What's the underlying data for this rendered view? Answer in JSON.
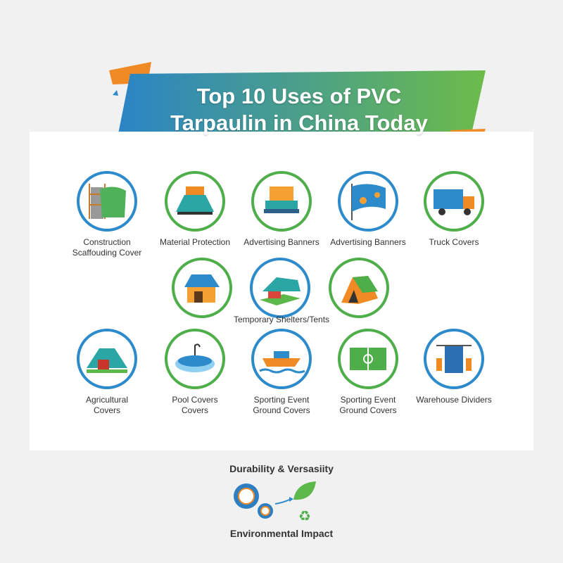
{
  "title": {
    "line1": "Top 10 Uses of PVC",
    "line2": "Tarpaulin in China Today"
  },
  "colors": {
    "blue": "#2d8acb",
    "green": "#4eae4a",
    "orange": "#f08a24"
  },
  "row1": [
    {
      "label": "Construction Scaffouding Cover",
      "icon": "scaffolding-icon",
      "ring": "blue"
    },
    {
      "label": "Material Protection",
      "icon": "covered-pallet-icon",
      "ring": "green"
    },
    {
      "label": "Advertising Banners",
      "icon": "stacked-boxes-icon",
      "ring": "green"
    },
    {
      "label": "Advertising Banners",
      "icon": "flag-banner-icon",
      "ring": "blue"
    },
    {
      "label": "Truck Covers",
      "icon": "truck-icon",
      "ring": "green"
    }
  ],
  "row2": {
    "label": "Temporary Shelters/Tents",
    "items": [
      {
        "icon": "barn-icon",
        "ring": "green"
      },
      {
        "icon": "canopy-shelter-icon",
        "ring": "blue"
      },
      {
        "icon": "tent-icon",
        "ring": "green"
      }
    ]
  },
  "row3": [
    {
      "label": "Agricultural Covers",
      "icon": "greenhouse-icon",
      "ring": "blue"
    },
    {
      "label": "Pool Covers Covers",
      "icon": "pool-cover-icon",
      "ring": "green"
    },
    {
      "label": "Sporting Event Ground Covers",
      "icon": "boat-icon",
      "ring": "blue"
    },
    {
      "label": "Sporting Event Ground Covers",
      "icon": "soccer-field-icon",
      "ring": "green"
    },
    {
      "label": "Warehouse Dividers",
      "icon": "curtain-divider-icon",
      "ring": "blue"
    }
  ],
  "footer": {
    "top": "Durability & Versasiity",
    "bottom": "Environmental Impact"
  }
}
